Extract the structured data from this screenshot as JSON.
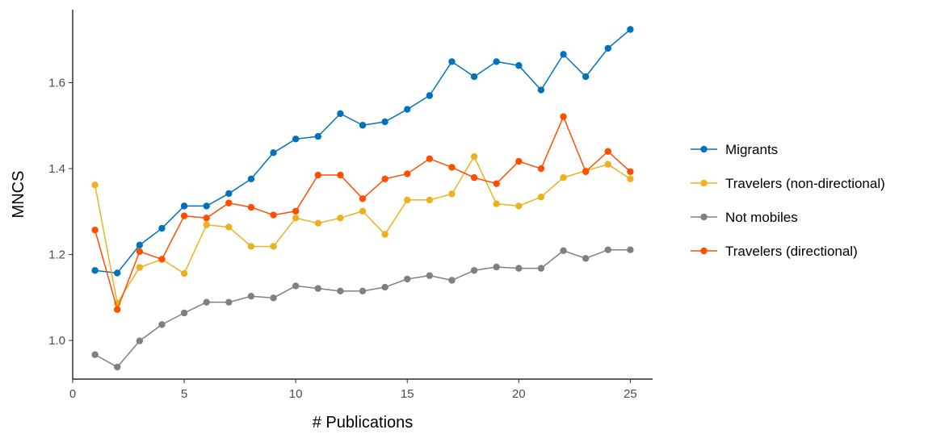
{
  "chart_data": {
    "type": "line",
    "xlabel": "# Publications",
    "ylabel": "MNCS",
    "xlim": [
      0,
      26
    ],
    "ylim": [
      0.91,
      1.77
    ],
    "xticks": [
      "0",
      "5",
      "10",
      "15",
      "20",
      "25"
    ],
    "yticks": [
      "1.0",
      "1.2",
      "1.4",
      "1.6"
    ],
    "grid": false,
    "legend_position": "right",
    "x": [
      1,
      2,
      3,
      4,
      5,
      6,
      7,
      8,
      9,
      10,
      11,
      12,
      13,
      14,
      15,
      16,
      17,
      18,
      19,
      20,
      21,
      22,
      23,
      24,
      25
    ],
    "series": [
      {
        "name": "Migrants",
        "color": "#0072BD",
        "values": [
          1.163,
          1.157,
          1.222,
          1.261,
          1.313,
          1.313,
          1.342,
          1.376,
          1.437,
          1.469,
          1.475,
          1.528,
          1.501,
          1.509,
          1.538,
          1.57,
          1.649,
          1.614,
          1.649,
          1.64,
          1.583,
          1.666,
          1.614,
          1.68,
          1.724
        ]
      },
      {
        "name": "Travelers (non-directional)",
        "color": "#EDB120",
        "values": [
          1.362,
          1.087,
          1.17,
          1.189,
          1.156,
          1.269,
          1.264,
          1.219,
          1.219,
          1.285,
          1.273,
          1.285,
          1.301,
          1.247,
          1.327,
          1.327,
          1.341,
          1.428,
          1.318,
          1.313,
          1.334,
          1.379,
          1.395,
          1.41,
          1.376
        ]
      },
      {
        "name": "Not mobiles",
        "color": "#808080",
        "values": [
          0.967,
          0.938,
          0.999,
          1.037,
          1.064,
          1.089,
          1.089,
          1.103,
          1.099,
          1.127,
          1.121,
          1.115,
          1.115,
          1.124,
          1.143,
          1.151,
          1.14,
          1.163,
          1.171,
          1.168,
          1.168,
          1.209,
          1.191,
          1.211,
          1.211
        ]
      },
      {
        "name": "Travelers (directional)",
        "color": "#FF4E00",
        "values": [
          1.257,
          1.072,
          1.207,
          1.189,
          1.29,
          1.285,
          1.32,
          1.31,
          1.292,
          1.301,
          1.385,
          1.385,
          1.33,
          1.376,
          1.388,
          1.423,
          1.403,
          1.379,
          1.365,
          1.417,
          1.4,
          1.521,
          1.393,
          1.44,
          1.393
        ]
      }
    ]
  }
}
